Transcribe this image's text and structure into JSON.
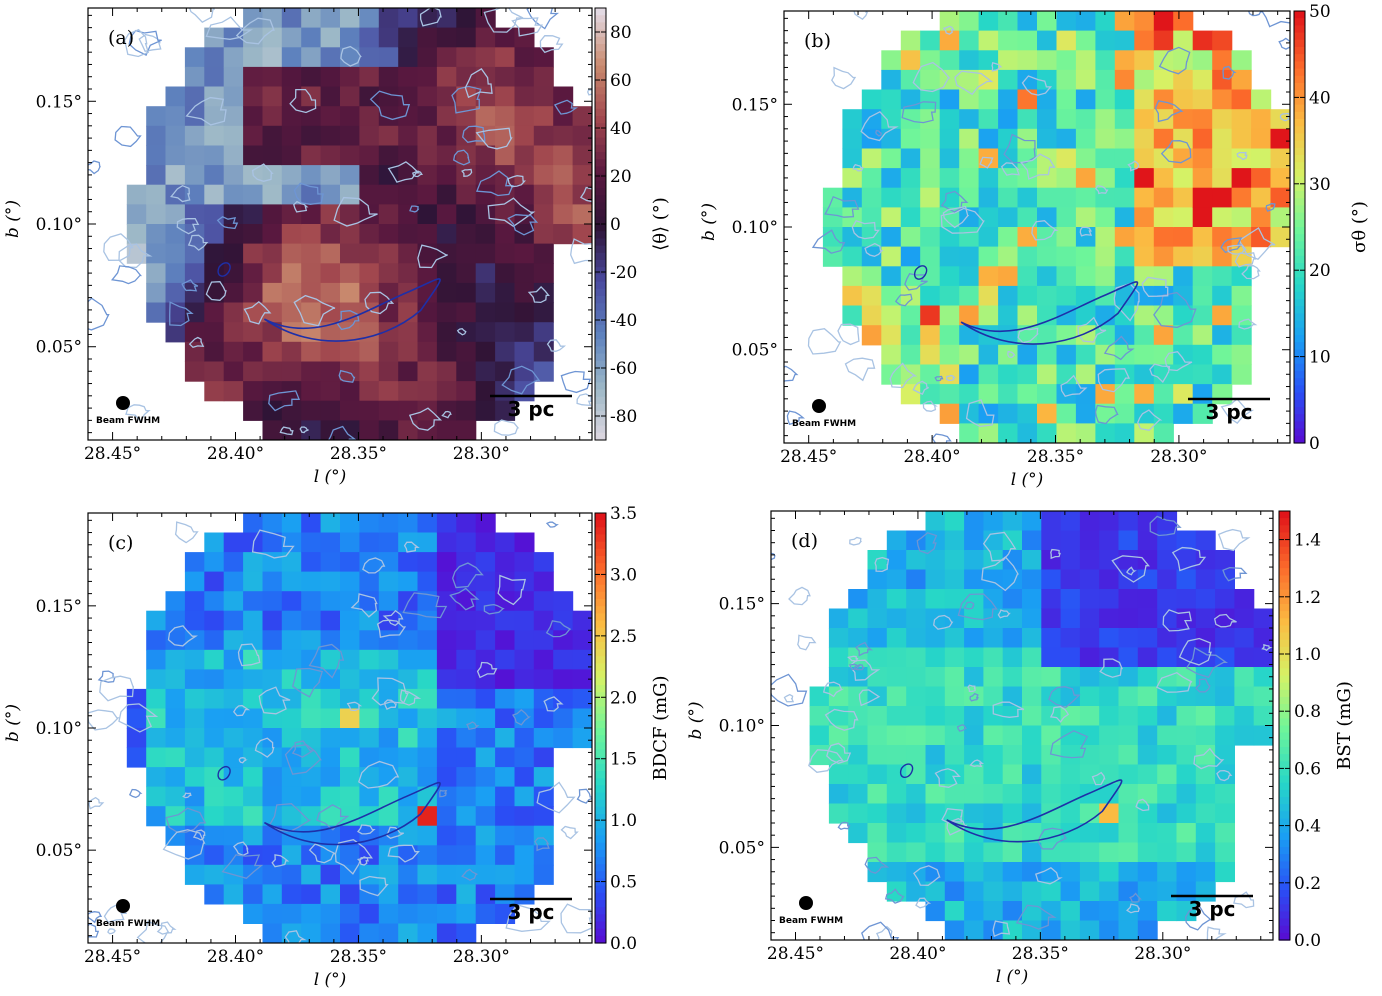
{
  "colormaps": {
    "twilight": [
      "#e2d9e2",
      "#9eb9c7",
      "#5e82be",
      "#4a4a9f",
      "#2f1436",
      "#59183f",
      "#a1474e",
      "#c98a6e",
      "#e2d9e2"
    ],
    "jet": [
      "#5c06cf",
      "#2a4ff5",
      "#1a9ff3",
      "#27d7c7",
      "#6ef59a",
      "#d6f265",
      "#fbbb42",
      "#fc6b2b",
      "#e0151a"
    ]
  },
  "colors": {
    "contour_light": "#a9c3e3",
    "contour_mid": "#6e95d4",
    "contour_dark": "#1e2fa8",
    "beam": "#000000"
  },
  "axes": {
    "xlabel": "l (°)",
    "ylabel": "b (°)",
    "xticks": [
      "28.45°",
      "28.40°",
      "28.35°",
      "28.30°"
    ],
    "yticks": [
      "0.15°",
      "0.10°",
      "0.05°"
    ],
    "xlim": [
      28.46,
      28.255
    ],
    "ylim": [
      0.012,
      0.188
    ]
  },
  "scalebar_text": "3 pc",
  "beam_text": "Beam FWHM",
  "chart_data": [
    {
      "type": "heatmap",
      "panel": "(a)",
      "colormap": "twilight",
      "colorbar_label": "⟨θ⟩ (°)",
      "vmin": -90,
      "vmax": 90,
      "cb_ticks": [
        "80",
        "60",
        "40",
        "20",
        "0",
        "-20",
        "-40",
        "-60",
        "-80"
      ],
      "cb_tick_values": [
        80,
        60,
        40,
        20,
        0,
        -20,
        -40,
        -60,
        -80
      ]
    },
    {
      "type": "heatmap",
      "panel": "(b)",
      "colormap": "jet",
      "colorbar_label": "σθ (°)",
      "vmin": 0,
      "vmax": 50,
      "cb_ticks": [
        "50",
        "40",
        "30",
        "20",
        "10",
        "0"
      ],
      "cb_tick_values": [
        50,
        40,
        30,
        20,
        10,
        0
      ]
    },
    {
      "type": "heatmap",
      "panel": "(c)",
      "colormap": "jet",
      "colorbar_label": "BDCF (mG)",
      "vmin": 0,
      "vmax": 3.5,
      "cb_ticks": [
        "3.5",
        "3.0",
        "2.5",
        "2.0",
        "1.5",
        "1.0",
        "0.5",
        "0.0"
      ],
      "cb_tick_values": [
        3.5,
        3.0,
        2.5,
        2.0,
        1.5,
        1.0,
        0.5,
        0.0
      ]
    },
    {
      "type": "heatmap",
      "panel": "(d)",
      "colormap": "jet",
      "colorbar_label": "BST (mG)",
      "vmin": 0,
      "vmax": 1.5,
      "cb_ticks": [
        "1.4",
        "1.2",
        "1.0",
        "0.8",
        "0.6",
        "0.4",
        "0.2",
        "0.0"
      ],
      "cb_tick_values": [
        1.4,
        1.2,
        1.0,
        0.8,
        0.6,
        0.4,
        0.2,
        0.0
      ]
    }
  ]
}
